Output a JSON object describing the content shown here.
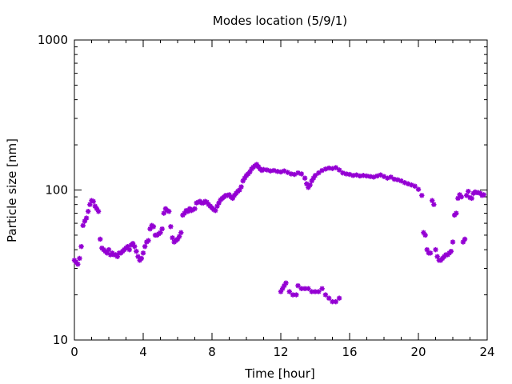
{
  "chart_data": {
    "type": "scatter",
    "title": "Modes location (5/9/1)",
    "xlabel": "Time [hour]",
    "ylabel": "Particle size [nm]",
    "xlim": [
      0,
      24
    ],
    "ylim": [
      10,
      1000
    ],
    "yscale": "log",
    "grid": false,
    "legend": "none",
    "marker_color": "#9400d3",
    "marker": "star",
    "x_ticks": [
      "0",
      "4",
      "8",
      "12",
      "16",
      "20",
      "24"
    ],
    "y_ticks": [
      "10",
      "100",
      "1000"
    ],
    "series": [
      {
        "points": [
          [
            0.0,
            34
          ],
          [
            0.1,
            33
          ],
          [
            0.2,
            32
          ],
          [
            0.3,
            35
          ],
          [
            0.4,
            42
          ],
          [
            0.5,
            58
          ],
          [
            0.6,
            62
          ],
          [
            0.7,
            65
          ],
          [
            0.8,
            72
          ],
          [
            0.9,
            80
          ],
          [
            1.0,
            85
          ],
          [
            1.1,
            84
          ],
          [
            1.2,
            78
          ],
          [
            1.3,
            75
          ],
          [
            1.4,
            72
          ],
          [
            1.5,
            47
          ],
          [
            1.6,
            41
          ],
          [
            1.7,
            40
          ],
          [
            1.8,
            39
          ],
          [
            1.9,
            38
          ],
          [
            2.0,
            40
          ],
          [
            2.1,
            37
          ],
          [
            2.2,
            38
          ],
          [
            2.3,
            37
          ],
          [
            2.4,
            37
          ],
          [
            2.5,
            36
          ],
          [
            2.6,
            38
          ],
          [
            2.7,
            38
          ],
          [
            2.8,
            39
          ],
          [
            2.9,
            40
          ],
          [
            3.0,
            41
          ],
          [
            3.1,
            42
          ],
          [
            3.2,
            40
          ],
          [
            3.3,
            43
          ],
          [
            3.4,
            44
          ],
          [
            3.5,
            42
          ],
          [
            3.6,
            39
          ],
          [
            3.7,
            36
          ],
          [
            3.8,
            34
          ],
          [
            3.9,
            35
          ],
          [
            4.0,
            38
          ],
          [
            4.1,
            42
          ],
          [
            4.2,
            45
          ],
          [
            4.3,
            46
          ],
          [
            4.4,
            55
          ],
          [
            4.5,
            58
          ],
          [
            4.6,
            57
          ],
          [
            4.7,
            50
          ],
          [
            4.8,
            50
          ],
          [
            4.9,
            51
          ],
          [
            5.0,
            52
          ],
          [
            5.1,
            55
          ],
          [
            5.2,
            70
          ],
          [
            5.3,
            75
          ],
          [
            5.4,
            73
          ],
          [
            5.5,
            72
          ],
          [
            5.6,
            57
          ],
          [
            5.7,
            48
          ],
          [
            5.8,
            45
          ],
          [
            5.9,
            46
          ],
          [
            6.0,
            47
          ],
          [
            6.1,
            49
          ],
          [
            6.2,
            52
          ],
          [
            6.3,
            68
          ],
          [
            6.4,
            70
          ],
          [
            6.5,
            73
          ],
          [
            6.6,
            72
          ],
          [
            6.7,
            75
          ],
          [
            6.8,
            73
          ],
          [
            6.9,
            74
          ],
          [
            7.0,
            75
          ],
          [
            7.1,
            82
          ],
          [
            7.2,
            83
          ],
          [
            7.3,
            84
          ],
          [
            7.4,
            82
          ],
          [
            7.5,
            82
          ],
          [
            7.6,
            84
          ],
          [
            7.7,
            83
          ],
          [
            7.8,
            80
          ],
          [
            7.9,
            78
          ],
          [
            8.0,
            76
          ],
          [
            8.1,
            74
          ],
          [
            8.2,
            73
          ],
          [
            8.3,
            78
          ],
          [
            8.4,
            82
          ],
          [
            8.5,
            86
          ],
          [
            8.6,
            88
          ],
          [
            8.7,
            90
          ],
          [
            8.8,
            92
          ],
          [
            8.9,
            92
          ],
          [
            9.0,
            93
          ],
          [
            9.1,
            90
          ],
          [
            9.2,
            88
          ],
          [
            9.3,
            92
          ],
          [
            9.4,
            95
          ],
          [
            9.5,
            98
          ],
          [
            9.6,
            100
          ],
          [
            9.7,
            105
          ],
          [
            9.8,
            115
          ],
          [
            9.9,
            120
          ],
          [
            10.0,
            125
          ],
          [
            10.1,
            128
          ],
          [
            10.2,
            132
          ],
          [
            10.3,
            138
          ],
          [
            10.4,
            142
          ],
          [
            10.5,
            145
          ],
          [
            10.6,
            148
          ],
          [
            10.7,
            143
          ],
          [
            10.8,
            138
          ],
          [
            10.9,
            135
          ],
          [
            11.0,
            137
          ],
          [
            11.2,
            136
          ],
          [
            11.4,
            134
          ],
          [
            11.6,
            135
          ],
          [
            11.8,
            133
          ],
          [
            12.0,
            132
          ],
          [
            12.2,
            134
          ],
          [
            12.4,
            131
          ],
          [
            12.6,
            128
          ],
          [
            12.8,
            127
          ],
          [
            13.0,
            130
          ],
          [
            13.2,
            128
          ],
          [
            13.4,
            120
          ],
          [
            13.5,
            110
          ],
          [
            13.6,
            104
          ],
          [
            13.7,
            108
          ],
          [
            13.8,
            115
          ],
          [
            13.9,
            120
          ],
          [
            14.0,
            125
          ],
          [
            14.2,
            130
          ],
          [
            14.4,
            135
          ],
          [
            14.6,
            138
          ],
          [
            14.8,
            140
          ],
          [
            15.0,
            139
          ],
          [
            15.2,
            141
          ],
          [
            15.4,
            136
          ],
          [
            15.6,
            130
          ],
          [
            15.8,
            128
          ],
          [
            16.0,
            127
          ],
          [
            16.2,
            125
          ],
          [
            16.4,
            126
          ],
          [
            16.6,
            124
          ],
          [
            16.8,
            125
          ],
          [
            17.0,
            124
          ],
          [
            17.2,
            123
          ],
          [
            17.4,
            122
          ],
          [
            17.6,
            124
          ],
          [
            17.8,
            126
          ],
          [
            18.0,
            123
          ],
          [
            18.2,
            120
          ],
          [
            18.4,
            122
          ],
          [
            18.6,
            118
          ],
          [
            18.8,
            117
          ],
          [
            19.0,
            115
          ],
          [
            19.2,
            112
          ],
          [
            19.4,
            110
          ],
          [
            19.6,
            108
          ],
          [
            19.8,
            106
          ],
          [
            20.0,
            101
          ],
          [
            20.2,
            92
          ],
          [
            20.3,
            52
          ],
          [
            20.4,
            50
          ],
          [
            20.5,
            40
          ],
          [
            20.6,
            38
          ],
          [
            20.7,
            38
          ],
          [
            20.8,
            85
          ],
          [
            20.9,
            80
          ],
          [
            21.0,
            40
          ],
          [
            21.1,
            36
          ],
          [
            21.2,
            34
          ],
          [
            21.3,
            34
          ],
          [
            21.4,
            35
          ],
          [
            21.5,
            36
          ],
          [
            21.6,
            37
          ],
          [
            21.7,
            37
          ],
          [
            21.8,
            38
          ],
          [
            21.9,
            39
          ],
          [
            22.0,
            45
          ],
          [
            22.1,
            68
          ],
          [
            22.2,
            70
          ],
          [
            22.3,
            88
          ],
          [
            22.4,
            93
          ],
          [
            22.5,
            90
          ],
          [
            22.6,
            45
          ],
          [
            22.7,
            47
          ],
          [
            22.8,
            92
          ],
          [
            22.9,
            98
          ],
          [
            23.0,
            89
          ],
          [
            23.1,
            88
          ],
          [
            23.2,
            95
          ],
          [
            23.3,
            97
          ],
          [
            23.4,
            96
          ],
          [
            23.5,
            96
          ],
          [
            23.6,
            95
          ],
          [
            23.7,
            92
          ],
          [
            23.8,
            93
          ],
          [
            12.0,
            21
          ],
          [
            12.1,
            22
          ],
          [
            12.2,
            23
          ],
          [
            12.3,
            24
          ],
          [
            12.5,
            21
          ],
          [
            12.7,
            20
          ],
          [
            12.9,
            20
          ],
          [
            13.0,
            23
          ],
          [
            13.2,
            22
          ],
          [
            13.4,
            22
          ],
          [
            13.6,
            22
          ],
          [
            13.8,
            21
          ],
          [
            14.0,
            21
          ],
          [
            14.2,
            21
          ],
          [
            14.4,
            22
          ],
          [
            14.6,
            20
          ],
          [
            14.8,
            19
          ],
          [
            15.0,
            18
          ],
          [
            15.2,
            18
          ],
          [
            15.4,
            19
          ]
        ]
      }
    ]
  }
}
